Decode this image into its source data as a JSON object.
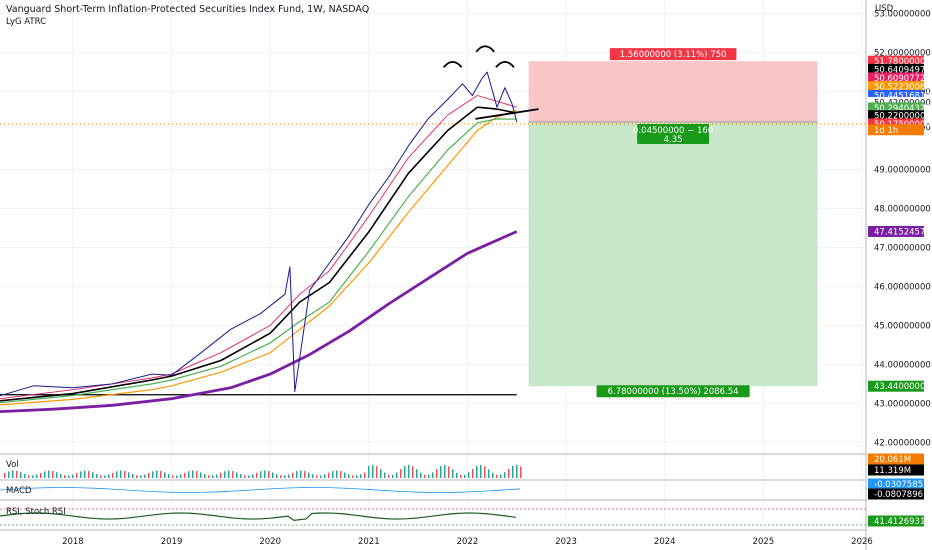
{
  "header": {
    "title": "Vanguard Short-Term Inflation-Protected Securities Index Fund, 1W, NASDAQ",
    "indicator": "LyG ATRC",
    "currency": "USD"
  },
  "panes": {
    "volume": "Vol",
    "macd": "MACD",
    "rsi": "RSI, Stoch RSI"
  },
  "colors": {
    "up": "#26a69a",
    "down": "#1a1a8c",
    "ema_fast": "#e91e63",
    "ema_black": "#000000",
    "ema_orange": "#ff9800",
    "ema_green": "#4caf50",
    "ema_purple": "#7b1fa2",
    "stop_zone": "#f8c6c6",
    "target_zone": "#c8e6c9"
  },
  "chart_data": {
    "type": "line",
    "x_ticks": [
      "2018",
      "2019",
      "2020",
      "2021",
      "2022",
      "2023",
      "2024",
      "2025",
      "2026"
    ],
    "y_ticks": [
      "53.00000000",
      "52.00000000",
      "51.00000000",
      "50.09000000",
      "49.00000000",
      "48.00000000",
      "47.00000000",
      "46.00000000",
      "45.00000000",
      "44.00000000",
      "43.00000000",
      "42.00000000"
    ],
    "ylim": [
      41.7,
      53.35
    ],
    "price_tags": [
      {
        "label": "51.78000000",
        "value": 51.78,
        "bg": "#f23645",
        "fg": "#ffffff"
      },
      {
        "label": "50.64094972",
        "value": 51.57,
        "bg": "#000000",
        "fg": "#ffffff"
      },
      {
        "label": "50.60907722",
        "value": 51.35,
        "bg": "#e91e63",
        "fg": "#ffffff"
      },
      {
        "label": "50.52230066",
        "value": 51.13,
        "bg": "#ff9800",
        "fg": "#ffffff"
      },
      {
        "label": "50.44516813",
        "value": 50.9,
        "bg": "#2962ff",
        "fg": "#ffffff"
      },
      {
        "label": "50.42000000",
        "value": 50.72,
        "bg": "#ffffff",
        "fg": "#131722"
      },
      {
        "label": "50.29404326",
        "value": 50.58,
        "bg": "#4caf50",
        "fg": "#ffffff"
      },
      {
        "label": "50.22000000",
        "value": 50.38,
        "bg": "#000000",
        "fg": "#ffffff"
      },
      {
        "label": "50.17500000",
        "value": 50.17,
        "bg": "#f23645",
        "fg": "#ffffff"
      },
      {
        "label": "1d 1h",
        "value": 50.02,
        "bg": "#f57c00",
        "fg": "#ffffff"
      },
      {
        "label": "47.41524575",
        "value": 47.41,
        "bg": "#7b1fa2",
        "fg": "#ffffff"
      },
      {
        "label": "43.44000000",
        "value": 43.44,
        "bg": "#1a9a1a",
        "fg": "#ffffff"
      }
    ],
    "sub_tags": [
      {
        "label": "20.061M",
        "pane": "volume",
        "bg": "#f57c00"
      },
      {
        "label": "11.319M",
        "pane": "volume",
        "bg": "#000000"
      },
      {
        "label": "-0.03075851",
        "pane": "macd",
        "bg": "#2196f3"
      },
      {
        "label": "-0.08078961",
        "pane": "macd",
        "bg": "#000000"
      },
      {
        "label": "41.41269315",
        "pane": "rsi",
        "bg": "#1a9a1a"
      }
    ],
    "position": {
      "entry": 50.22,
      "stop": 51.78,
      "target": 43.44,
      "stop_label": "1.56000000 (3.11%) 750",
      "mid_label_1": "0.04500000 − 160",
      "mid_label_2": "4.35",
      "target_label": "6.78000000 (13.50%) 2086.54"
    },
    "series": [
      {
        "name": "",
        "role": "price",
        "x": [
          2017.2,
          2017.6,
          2018.0,
          2018.4,
          2018.8,
          2019.0,
          2019.3,
          2019.6,
          2019.9,
          2020.15,
          2020.2,
          2020.25,
          2020.4,
          2020.6,
          2020.8,
          2021.0,
          2021.2,
          2021.4,
          2021.6,
          2021.8,
          2021.95,
          2022.05,
          2022.15,
          2022.2,
          2022.3,
          2022.38,
          2022.45,
          2022.5
        ],
        "y": [
          43.15,
          43.45,
          43.4,
          43.5,
          43.75,
          43.72,
          44.3,
          44.9,
          45.3,
          45.8,
          46.5,
          43.3,
          45.9,
          46.6,
          47.3,
          48.1,
          48.8,
          49.6,
          50.3,
          50.8,
          51.2,
          50.9,
          51.35,
          51.5,
          50.6,
          51.1,
          50.7,
          50.22
        ]
      },
      {
        "name": "",
        "role": "ema_black",
        "x": [
          2017.2,
          2018.0,
          2018.8,
          2019.0,
          2019.5,
          2020.0,
          2020.3,
          2020.6,
          2021.0,
          2021.4,
          2021.8,
          2022.1,
          2022.3,
          2022.5
        ],
        "y": [
          43.05,
          43.25,
          43.6,
          43.7,
          44.1,
          44.8,
          45.6,
          46.1,
          47.4,
          48.9,
          50.0,
          50.6,
          50.55,
          50.45
        ]
      },
      {
        "name": "",
        "role": "ema_fast",
        "x": [
          2017.2,
          2018.0,
          2018.8,
          2019.0,
          2019.5,
          2020.0,
          2020.3,
          2020.6,
          2021.0,
          2021.4,
          2021.8,
          2022.1,
          2022.3,
          2022.5
        ],
        "y": [
          43.1,
          43.35,
          43.65,
          43.75,
          44.3,
          45.0,
          45.8,
          46.4,
          47.8,
          49.3,
          50.4,
          50.9,
          50.75,
          50.6
        ]
      },
      {
        "name": "",
        "role": "ema_orange",
        "x": [
          2017.2,
          2018.0,
          2018.8,
          2019.0,
          2019.5,
          2020.0,
          2020.3,
          2020.6,
          2021.0,
          2021.4,
          2021.8,
          2022.1,
          2022.3,
          2022.5
        ],
        "y": [
          42.95,
          43.1,
          43.35,
          43.45,
          43.8,
          44.3,
          44.9,
          45.5,
          46.6,
          47.9,
          49.1,
          50.0,
          50.35,
          50.52
        ]
      },
      {
        "name": "",
        "role": "ema_green",
        "x": [
          2017.2,
          2018.0,
          2018.8,
          2019.0,
          2019.5,
          2020.0,
          2020.3,
          2020.6,
          2021.0,
          2021.4,
          2021.8,
          2022.1,
          2022.3,
          2022.5
        ],
        "y": [
          43.0,
          43.2,
          43.5,
          43.6,
          43.95,
          44.55,
          45.1,
          45.6,
          46.9,
          48.3,
          49.5,
          50.2,
          50.3,
          50.29
        ]
      },
      {
        "name": "",
        "role": "ema_purple",
        "x": [
          2017.2,
          2017.8,
          2018.4,
          2019.0,
          2019.6,
          2020.0,
          2020.4,
          2020.8,
          2021.2,
          2021.6,
          2022.0,
          2022.5
        ],
        "y": [
          42.78,
          42.85,
          42.95,
          43.12,
          43.4,
          43.75,
          44.25,
          44.85,
          45.55,
          46.2,
          46.85,
          47.41
        ]
      }
    ]
  }
}
